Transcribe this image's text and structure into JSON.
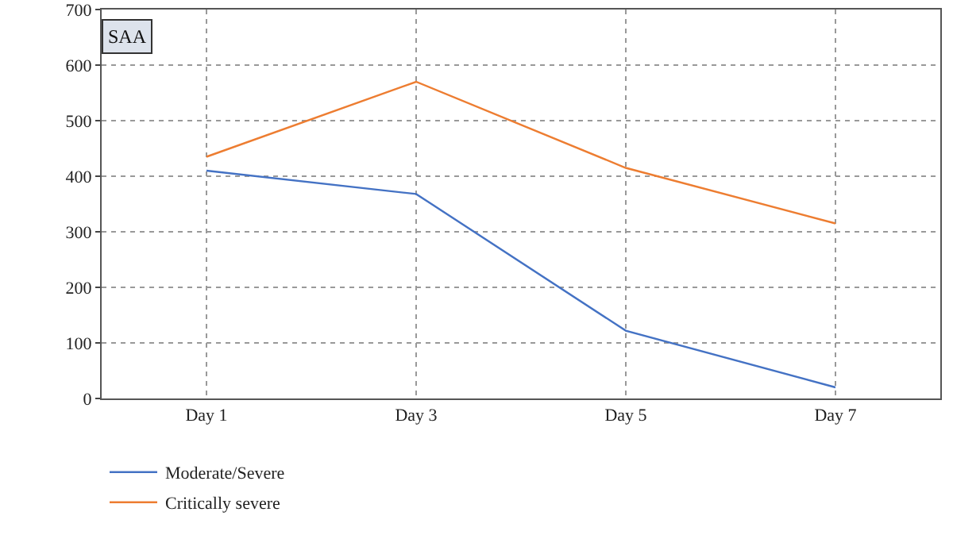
{
  "chart_data": {
    "type": "line",
    "ylabel": "SAA",
    "categories": [
      "Day 1",
      "Day 3",
      "Day 5",
      "Day 7"
    ],
    "series": [
      {
        "name": "Moderate/Severe",
        "color": "#4472c4",
        "values": [
          410,
          368,
          122,
          20
        ]
      },
      {
        "name": "Critically severe",
        "color": "#ed7d31",
        "values": [
          435,
          570,
          415,
          315
        ]
      }
    ],
    "ylim": [
      0,
      700
    ],
    "yticks": [
      0,
      100,
      200,
      300,
      400,
      500,
      600,
      700
    ],
    "grid": true,
    "legend": "bottom left",
    "marker": "none",
    "line_style": "solid"
  }
}
